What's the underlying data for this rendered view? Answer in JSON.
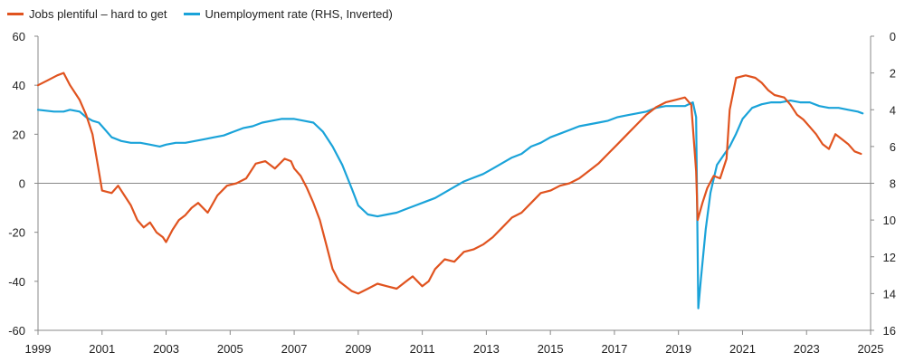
{
  "chart_data": {
    "type": "line",
    "colors": {
      "jobs": "#e0531f",
      "unemployment": "#1aa3d9",
      "axis": "#888888"
    },
    "legend": [
      {
        "label": "Jobs plentiful – hard to get",
        "color": "#e0531f"
      },
      {
        "label": "Unemployment rate (RHS, Inverted)",
        "color": "#1aa3d9"
      }
    ],
    "x_ticks": [
      "1999",
      "2001",
      "2003",
      "2005",
      "2007",
      "2009",
      "2011",
      "2013",
      "2015",
      "2017",
      "2019",
      "2021",
      "2023",
      "2025"
    ],
    "x_range": [
      1999,
      2025
    ],
    "y_left": {
      "range": [
        -60,
        60
      ],
      "ticks": [
        "60",
        "40",
        "20",
        "0",
        "-20",
        "-40",
        "-60"
      ]
    },
    "y_right": {
      "range": [
        0,
        16
      ],
      "inverted": true,
      "ticks": [
        "0",
        "2",
        "4",
        "6",
        "8",
        "10",
        "12",
        "14",
        "16"
      ]
    },
    "series": [
      {
        "name": "Jobs plentiful – hard to get",
        "axis": "left",
        "points": [
          [
            1999.0,
            40
          ],
          [
            1999.3,
            42
          ],
          [
            1999.6,
            44
          ],
          [
            1999.8,
            45
          ],
          [
            2000.0,
            40
          ],
          [
            2000.3,
            34
          ],
          [
            2000.5,
            28
          ],
          [
            2000.7,
            20
          ],
          [
            2000.9,
            5
          ],
          [
            2001.0,
            -3
          ],
          [
            2001.3,
            -4
          ],
          [
            2001.5,
            -1
          ],
          [
            2001.7,
            -5
          ],
          [
            2001.9,
            -9
          ],
          [
            2002.1,
            -15
          ],
          [
            2002.3,
            -18
          ],
          [
            2002.5,
            -16
          ],
          [
            2002.7,
            -20
          ],
          [
            2002.9,
            -22
          ],
          [
            2003.0,
            -24
          ],
          [
            2003.2,
            -19
          ],
          [
            2003.4,
            -15
          ],
          [
            2003.6,
            -13
          ],
          [
            2003.8,
            -10
          ],
          [
            2004.0,
            -8
          ],
          [
            2004.3,
            -12
          ],
          [
            2004.6,
            -5
          ],
          [
            2004.9,
            -1
          ],
          [
            2005.2,
            0
          ],
          [
            2005.5,
            2
          ],
          [
            2005.8,
            8
          ],
          [
            2006.1,
            9
          ],
          [
            2006.4,
            6
          ],
          [
            2006.7,
            10
          ],
          [
            2006.9,
            9
          ],
          [
            2007.0,
            6
          ],
          [
            2007.2,
            3
          ],
          [
            2007.4,
            -2
          ],
          [
            2007.6,
            -8
          ],
          [
            2007.8,
            -15
          ],
          [
            2008.0,
            -25
          ],
          [
            2008.2,
            -35
          ],
          [
            2008.4,
            -40
          ],
          [
            2008.6,
            -42
          ],
          [
            2008.8,
            -44
          ],
          [
            2009.0,
            -45
          ],
          [
            2009.3,
            -43
          ],
          [
            2009.6,
            -41
          ],
          [
            2009.9,
            -42
          ],
          [
            2010.2,
            -43
          ],
          [
            2010.5,
            -40
          ],
          [
            2010.7,
            -38
          ],
          [
            2011.0,
            -42
          ],
          [
            2011.2,
            -40
          ],
          [
            2011.4,
            -35
          ],
          [
            2011.7,
            -31
          ],
          [
            2012.0,
            -32
          ],
          [
            2012.3,
            -28
          ],
          [
            2012.6,
            -27
          ],
          [
            2012.9,
            -25
          ],
          [
            2013.2,
            -22
          ],
          [
            2013.5,
            -18
          ],
          [
            2013.8,
            -14
          ],
          [
            2014.1,
            -12
          ],
          [
            2014.4,
            -8
          ],
          [
            2014.7,
            -4
          ],
          [
            2015.0,
            -3
          ],
          [
            2015.3,
            -1
          ],
          [
            2015.6,
            0
          ],
          [
            2015.9,
            2
          ],
          [
            2016.2,
            5
          ],
          [
            2016.5,
            8
          ],
          [
            2016.8,
            12
          ],
          [
            2017.1,
            16
          ],
          [
            2017.4,
            20
          ],
          [
            2017.7,
            24
          ],
          [
            2018.0,
            28
          ],
          [
            2018.3,
            31
          ],
          [
            2018.6,
            33
          ],
          [
            2018.9,
            34
          ],
          [
            2019.2,
            35
          ],
          [
            2019.4,
            32
          ],
          [
            2019.55,
            5
          ],
          [
            2019.6,
            -15
          ],
          [
            2019.75,
            -8
          ],
          [
            2019.9,
            -2
          ],
          [
            2020.1,
            3
          ],
          [
            2020.3,
            2
          ],
          [
            2020.5,
            10
          ],
          [
            2020.6,
            30
          ],
          [
            2020.8,
            43
          ],
          [
            2021.1,
            44
          ],
          [
            2021.4,
            43
          ],
          [
            2021.6,
            41
          ],
          [
            2021.8,
            38
          ],
          [
            2022.0,
            36
          ],
          [
            2022.3,
            35
          ],
          [
            2022.5,
            32
          ],
          [
            2022.7,
            28
          ],
          [
            2022.9,
            26
          ],
          [
            2023.1,
            23
          ],
          [
            2023.3,
            20
          ],
          [
            2023.5,
            16
          ],
          [
            2023.7,
            14
          ],
          [
            2023.9,
            20
          ],
          [
            2024.1,
            18
          ],
          [
            2024.3,
            16
          ],
          [
            2024.5,
            13
          ],
          [
            2024.7,
            12
          ]
        ]
      },
      {
        "name": "Unemployment rate (RHS, Inverted)",
        "axis": "right",
        "points": [
          [
            1999.0,
            4.0
          ],
          [
            1999.5,
            4.1
          ],
          [
            1999.8,
            4.1
          ],
          [
            2000.0,
            4.0
          ],
          [
            2000.3,
            4.1
          ],
          [
            2000.5,
            4.4
          ],
          [
            2000.7,
            4.6
          ],
          [
            2000.9,
            4.7
          ],
          [
            2001.0,
            4.9
          ],
          [
            2001.3,
            5.5
          ],
          [
            2001.6,
            5.7
          ],
          [
            2001.9,
            5.8
          ],
          [
            2002.2,
            5.8
          ],
          [
            2002.5,
            5.9
          ],
          [
            2002.8,
            6.0
          ],
          [
            2003.0,
            5.9
          ],
          [
            2003.3,
            5.8
          ],
          [
            2003.6,
            5.8
          ],
          [
            2003.9,
            5.7
          ],
          [
            2004.2,
            5.6
          ],
          [
            2004.5,
            5.5
          ],
          [
            2004.8,
            5.4
          ],
          [
            2005.1,
            5.2
          ],
          [
            2005.4,
            5.0
          ],
          [
            2005.7,
            4.9
          ],
          [
            2006.0,
            4.7
          ],
          [
            2006.3,
            4.6
          ],
          [
            2006.6,
            4.5
          ],
          [
            2006.9,
            4.5
          ],
          [
            2007.0,
            4.5
          ],
          [
            2007.3,
            4.6
          ],
          [
            2007.6,
            4.7
          ],
          [
            2007.9,
            5.2
          ],
          [
            2008.2,
            6.0
          ],
          [
            2008.5,
            7.0
          ],
          [
            2008.8,
            8.3
          ],
          [
            2009.0,
            9.2
          ],
          [
            2009.3,
            9.7
          ],
          [
            2009.6,
            9.8
          ],
          [
            2009.9,
            9.7
          ],
          [
            2010.2,
            9.6
          ],
          [
            2010.5,
            9.4
          ],
          [
            2010.8,
            9.2
          ],
          [
            2011.1,
            9.0
          ],
          [
            2011.4,
            8.8
          ],
          [
            2011.7,
            8.5
          ],
          [
            2012.0,
            8.2
          ],
          [
            2012.3,
            7.9
          ],
          [
            2012.6,
            7.7
          ],
          [
            2012.9,
            7.5
          ],
          [
            2013.2,
            7.2
          ],
          [
            2013.5,
            6.9
          ],
          [
            2013.8,
            6.6
          ],
          [
            2014.1,
            6.4
          ],
          [
            2014.4,
            6.0
          ],
          [
            2014.7,
            5.8
          ],
          [
            2015.0,
            5.5
          ],
          [
            2015.3,
            5.3
          ],
          [
            2015.6,
            5.1
          ],
          [
            2015.9,
            4.9
          ],
          [
            2016.2,
            4.8
          ],
          [
            2016.5,
            4.7
          ],
          [
            2016.8,
            4.6
          ],
          [
            2017.1,
            4.4
          ],
          [
            2017.4,
            4.3
          ],
          [
            2017.7,
            4.2
          ],
          [
            2018.0,
            4.1
          ],
          [
            2018.3,
            3.9
          ],
          [
            2018.6,
            3.8
          ],
          [
            2018.9,
            3.8
          ],
          [
            2019.2,
            3.8
          ],
          [
            2019.45,
            3.6
          ],
          [
            2019.55,
            4.4
          ],
          [
            2019.62,
            14.8
          ],
          [
            2019.7,
            13.2
          ],
          [
            2019.85,
            10.5
          ],
          [
            2020.0,
            8.5
          ],
          [
            2020.2,
            7.0
          ],
          [
            2020.4,
            6.5
          ],
          [
            2020.6,
            6.0
          ],
          [
            2020.8,
            5.3
          ],
          [
            2021.0,
            4.5
          ],
          [
            2021.3,
            3.9
          ],
          [
            2021.6,
            3.7
          ],
          [
            2021.9,
            3.6
          ],
          [
            2022.2,
            3.6
          ],
          [
            2022.5,
            3.5
          ],
          [
            2022.8,
            3.6
          ],
          [
            2023.1,
            3.6
          ],
          [
            2023.4,
            3.8
          ],
          [
            2023.7,
            3.9
          ],
          [
            2024.0,
            3.9
          ],
          [
            2024.3,
            4.0
          ],
          [
            2024.6,
            4.1
          ],
          [
            2024.75,
            4.2
          ]
        ]
      }
    ]
  }
}
